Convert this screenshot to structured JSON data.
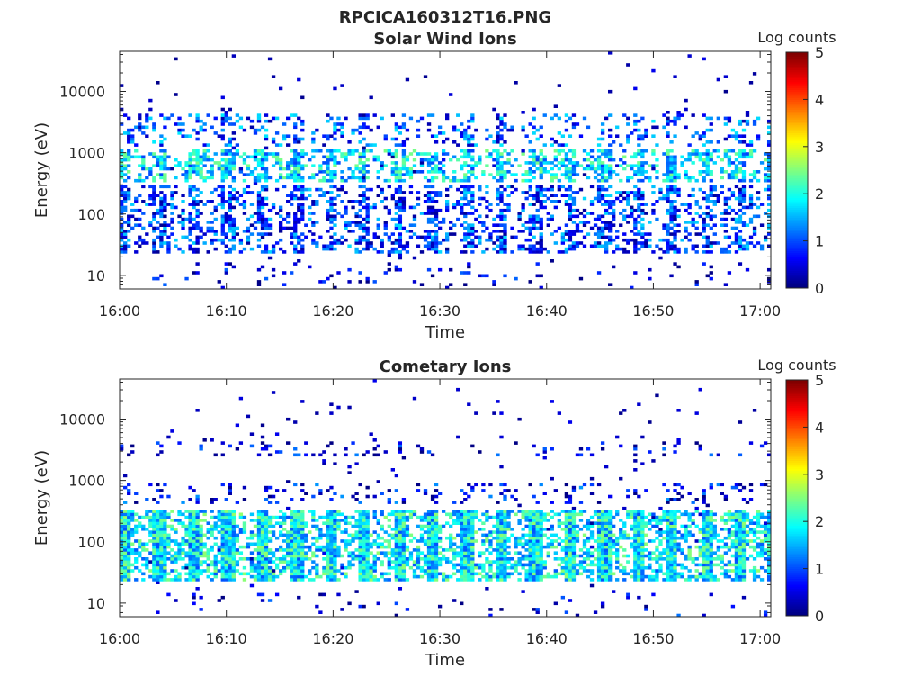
{
  "figure": {
    "title": "RPCICA160312T16.PNG"
  },
  "colors": {
    "axis": "#262626",
    "background": "#ffffff",
    "colormap": "jet"
  },
  "chart_data": [
    {
      "type": "heatmap",
      "title": "Solar Wind Ions",
      "xlabel": "Time",
      "ylabel": "Energy (eV)",
      "yscale": "log",
      "ylim": [
        6,
        45000
      ],
      "xlim": [
        "16:00",
        "17:01"
      ],
      "xticks": [
        "16:00",
        "16:10",
        "16:20",
        "16:30",
        "16:40",
        "16:50",
        "17:00"
      ],
      "yticks": [
        "10",
        "100",
        "1000",
        "10000"
      ],
      "colorbar": {
        "label": "Log counts",
        "range": [
          0,
          5
        ],
        "ticks": [
          "0",
          "1",
          "2",
          "3",
          "4",
          "5"
        ]
      },
      "sweep_period_min": 3.2,
      "bands": [
        {
          "e_lo": 350,
          "e_hi": 1100,
          "mean": 1.7,
          "density": 0.55
        },
        {
          "e_lo": 1200,
          "e_hi": 4500,
          "mean": 1.0,
          "density": 0.25
        },
        {
          "e_lo": 22,
          "e_hi": 300,
          "mean": 0.9,
          "density": 0.45
        },
        {
          "e_lo": 6,
          "e_hi": 16,
          "mean": 0.4,
          "density": 0.05
        }
      ]
    },
    {
      "type": "heatmap",
      "title": "Cometary Ions",
      "xlabel": "Time",
      "ylabel": "Energy (eV)",
      "yscale": "log",
      "ylim": [
        6,
        45000
      ],
      "xlim": [
        "16:00",
        "17:01"
      ],
      "xticks": [
        "16:00",
        "16:10",
        "16:20",
        "16:30",
        "16:40",
        "16:50",
        "17:00"
      ],
      "yticks": [
        "10",
        "100",
        "1000",
        "10000"
      ],
      "colorbar": {
        "label": "Log counts",
        "range": [
          0,
          5
        ],
        "ticks": [
          "0",
          "1",
          "2",
          "3",
          "4",
          "5"
        ]
      },
      "sweep_period_min": 3.2,
      "bands": [
        {
          "e_lo": 22,
          "e_hi": 320,
          "mean": 1.8,
          "density": 0.8
        },
        {
          "e_lo": 400,
          "e_hi": 900,
          "mean": 0.6,
          "density": 0.15
        },
        {
          "e_lo": 2500,
          "e_hi": 4200,
          "mean": 0.5,
          "density": 0.12
        },
        {
          "e_lo": 6,
          "e_hi": 14,
          "mean": 0.4,
          "density": 0.03
        }
      ]
    }
  ]
}
